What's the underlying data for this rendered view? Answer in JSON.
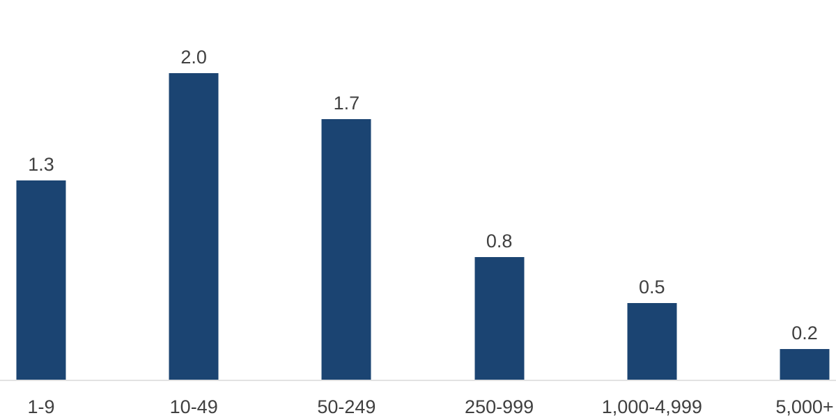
{
  "chart_data": {
    "type": "bar",
    "title": "",
    "xlabel": "",
    "ylabel": "",
    "categories": [
      "1-9",
      "10-49",
      "50-249",
      "250-999",
      "1,000-4,999",
      "5,000+"
    ],
    "values": [
      1.3,
      2.0,
      1.7,
      0.8,
      0.5,
      0.2
    ],
    "value_labels": [
      "1.3",
      "2.0",
      "1.7",
      "0.8",
      "0.5",
      "0.2"
    ],
    "ylim": [
      0,
      2.2
    ],
    "grid": false,
    "legend_position": "none",
    "axis_ticks_visible": false,
    "bar_color": "#1B4472",
    "label_color": "#404040",
    "axis_line_color": "#E2E2E2",
    "background_color": "#FFFFFF"
  }
}
